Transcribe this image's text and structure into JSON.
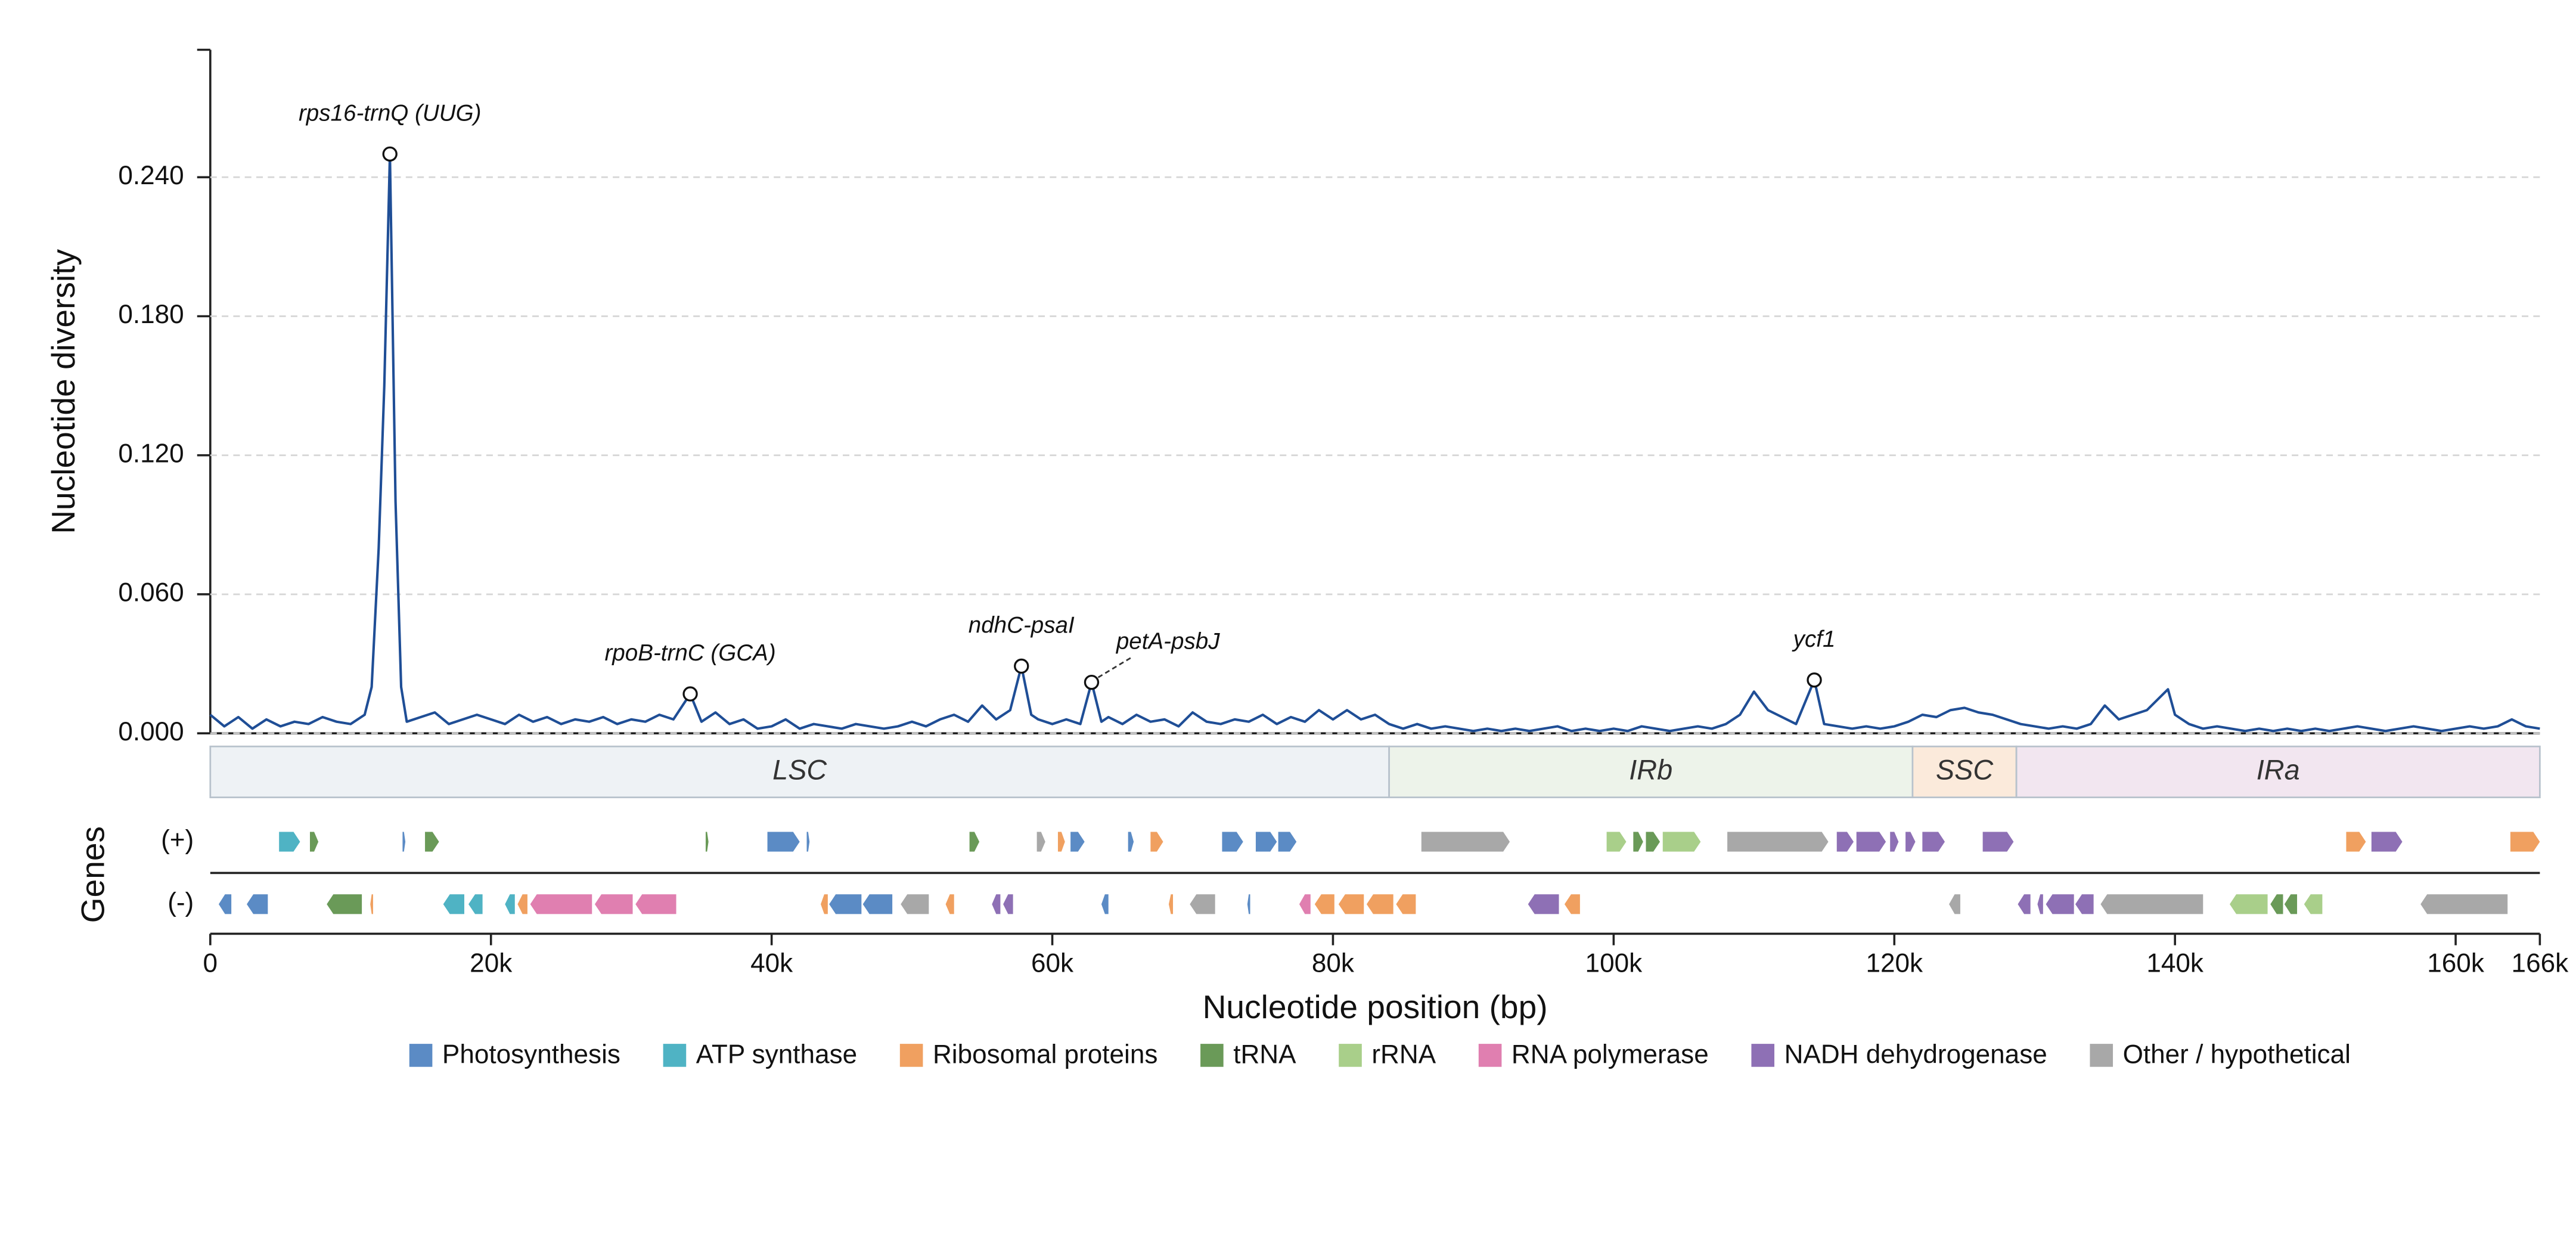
{
  "chart_data": {
    "type": "line",
    "y_label": "Nucleotide diversity",
    "x_label": "Nucleotide position (bp)",
    "gene_label": "Genes",
    "color": "#1f4e96",
    "xlim": [
      0,
      166000
    ],
    "xticks": [
      {
        "value": 0,
        "label": "0"
      },
      {
        "value": 20000,
        "label": "20k"
      },
      {
        "value": 40000,
        "label": "40k"
      },
      {
        "value": 60000,
        "label": "60k"
      },
      {
        "value": 80000,
        "label": "80k"
      },
      {
        "value": 100000,
        "label": "100k"
      },
      {
        "value": 120000,
        "label": "120k"
      },
      {
        "value": 140000,
        "label": "140k"
      },
      {
        "value": 160000,
        "label": "160k"
      },
      {
        "value": 166000,
        "label": "166k"
      }
    ],
    "ylim": [
      0,
      0.295
    ],
    "yticks": [
      {
        "value": 0,
        "label": "0.000"
      },
      {
        "value": 0.06,
        "label": "0.060"
      },
      {
        "value": 0.12,
        "label": "0.120"
      },
      {
        "value": 0.18,
        "label": "0.180"
      },
      {
        "value": 0.24,
        "label": "0.240"
      }
    ],
    "grid": true,
    "x": [
      0,
      1000,
      2000,
      3000,
      4000,
      5000,
      6000,
      7000,
      8000,
      9000,
      10000,
      11000,
      11500,
      12000,
      12400,
      12800,
      13200,
      13600,
      14000,
      15000,
      16000,
      17000,
      18000,
      19000,
      20000,
      21000,
      22000,
      23000,
      24000,
      25000,
      26000,
      27000,
      28000,
      29000,
      30000,
      31000,
      32000,
      33000,
      34200,
      35000,
      36000,
      37000,
      38000,
      39000,
      40000,
      41000,
      42000,
      43000,
      44000,
      45000,
      46000,
      47000,
      48000,
      49000,
      50000,
      51000,
      52000,
      53000,
      54000,
      55000,
      56000,
      57000,
      57800,
      58500,
      59000,
      60000,
      61000,
      62000,
      62800,
      63500,
      64000,
      65000,
      66000,
      67000,
      68000,
      69000,
      70000,
      71000,
      72000,
      73000,
      74000,
      75000,
      76000,
      77000,
      78000,
      79000,
      80000,
      81000,
      82000,
      83000,
      84000,
      85000,
      86000,
      87000,
      88000,
      89000,
      90000,
      91000,
      92000,
      93000,
      94000,
      95000,
      96000,
      97000,
      98000,
      99000,
      100000,
      101000,
      102000,
      103000,
      104000,
      105000,
      106000,
      107000,
      108000,
      109000,
      110000,
      111000,
      112000,
      113000,
      114300,
      115000,
      116000,
      117000,
      118000,
      119000,
      120000,
      121000,
      122000,
      123000,
      124000,
      125000,
      126000,
      127000,
      128000,
      129000,
      130000,
      131000,
      132000,
      133000,
      134000,
      135000,
      136000,
      137000,
      138000,
      139500,
      140000,
      141000,
      142000,
      143000,
      144000,
      145000,
      146000,
      147000,
      148000,
      149000,
      150000,
      151000,
      152000,
      153000,
      154000,
      155000,
      156000,
      157000,
      158000,
      159000,
      160000,
      161000,
      162000,
      163000,
      164000,
      165000,
      166000
    ],
    "values": [
      0.008,
      0.003,
      0.007,
      0.002,
      0.006,
      0.003,
      0.005,
      0.004,
      0.007,
      0.005,
      0.004,
      0.008,
      0.02,
      0.08,
      0.15,
      0.25,
      0.1,
      0.02,
      0.005,
      0.007,
      0.009,
      0.004,
      0.006,
      0.008,
      0.006,
      0.004,
      0.008,
      0.005,
      0.007,
      0.004,
      0.006,
      0.005,
      0.007,
      0.004,
      0.006,
      0.005,
      0.008,
      0.006,
      0.017,
      0.005,
      0.009,
      0.004,
      0.006,
      0.002,
      0.003,
      0.006,
      0.002,
      0.004,
      0.003,
      0.002,
      0.004,
      0.003,
      0.002,
      0.003,
      0.005,
      0.003,
      0.006,
      0.008,
      0.005,
      0.012,
      0.006,
      0.01,
      0.029,
      0.008,
      0.006,
      0.004,
      0.006,
      0.004,
      0.022,
      0.005,
      0.007,
      0.004,
      0.008,
      0.005,
      0.006,
      0.003,
      0.009,
      0.005,
      0.004,
      0.006,
      0.005,
      0.008,
      0.004,
      0.007,
      0.005,
      0.01,
      0.006,
      0.01,
      0.006,
      0.008,
      0.004,
      0.002,
      0.004,
      0.002,
      0.003,
      0.002,
      0.001,
      0.002,
      0.001,
      0.002,
      0.001,
      0.002,
      0.003,
      0.001,
      0.002,
      0.001,
      0.002,
      0.001,
      0.003,
      0.002,
      0.001,
      0.002,
      0.003,
      0.002,
      0.004,
      0.008,
      0.018,
      0.01,
      0.007,
      0.004,
      0.023,
      0.004,
      0.003,
      0.002,
      0.003,
      0.002,
      0.003,
      0.005,
      0.008,
      0.007,
      0.01,
      0.011,
      0.009,
      0.008,
      0.006,
      0.004,
      0.003,
      0.002,
      0.003,
      0.002,
      0.004,
      0.012,
      0.006,
      0.008,
      0.01,
      0.019,
      0.008,
      0.004,
      0.002,
      0.003,
      0.002,
      0.001,
      0.002,
      0.001,
      0.002,
      0.001,
      0.002,
      0.001,
      0.002,
      0.003,
      0.002,
      0.001,
      0.002,
      0.003,
      0.002,
      0.001,
      0.002,
      0.003,
      0.002,
      0.003,
      0.006,
      0.003,
      0.002
    ],
    "annotations": [
      {
        "label": "rps16-trnQ (UUG)",
        "x": 12800,
        "y": 0.25
      },
      {
        "label": "rpoB-trnC (GCA)",
        "x": 34200,
        "y": 0.017
      },
      {
        "label": "ndhC-psaI",
        "x": 57800,
        "y": 0.029
      },
      {
        "label": "petA-psbJ",
        "x": 62800,
        "y": 0.022
      },
      {
        "label": "ycf1",
        "x": 114300,
        "y": 0.023
      }
    ],
    "regions": [
      {
        "label": "LSC",
        "start": 0,
        "end": 84000,
        "color": "#eef2f5"
      },
      {
        "label": "IRb",
        "start": 84000,
        "end": 121300,
        "color": "#edf3ea"
      },
      {
        "label": "SSC",
        "start": 121300,
        "end": 128700,
        "color": "#fbeadb"
      },
      {
        "label": "IRa",
        "start": 128700,
        "end": 166000,
        "color": "#f2e6f0"
      }
    ],
    "strands": [
      "(+)",
      "(-)"
    ],
    "gene_categories": [
      {
        "name": "Photosynthesis",
        "color": "#5b8bc5"
      },
      {
        "name": "ATP synthase",
        "color": "#4fb3c4"
      },
      {
        "name": "Ribosomal proteins",
        "color": "#f0a060"
      },
      {
        "name": "tRNA",
        "color": "#6a9a58"
      },
      {
        "name": "rRNA",
        "color": "#a9cf8a"
      },
      {
        "name": "RNA polymerase",
        "color": "#e07fb0"
      },
      {
        "name": "NADH dehydrogenase",
        "color": "#8e70b5"
      },
      {
        "name": "Other / hypothetical",
        "color": "#a8a8a8"
      }
    ],
    "genes": [
      {
        "start": 4900,
        "end": 6400,
        "strand": 0,
        "category": 1
      },
      {
        "start": 7100,
        "end": 7700,
        "strand": 0,
        "category": 3
      },
      {
        "start": 13700,
        "end": 13900,
        "strand": 0,
        "category": 0
      },
      {
        "start": 15300,
        "end": 16300,
        "strand": 0,
        "category": 3
      },
      {
        "start": 35300,
        "end": 35500,
        "strand": 0,
        "category": 3
      },
      {
        "start": 39700,
        "end": 42000,
        "strand": 0,
        "category": 0
      },
      {
        "start": 42500,
        "end": 42700,
        "strand": 0,
        "category": 0
      },
      {
        "start": 54100,
        "end": 54800,
        "strand": 0,
        "category": 3
      },
      {
        "start": 58900,
        "end": 59500,
        "strand": 0,
        "category": 7
      },
      {
        "start": 60400,
        "end": 60900,
        "strand": 0,
        "category": 2
      },
      {
        "start": 61300,
        "end": 62300,
        "strand": 0,
        "category": 0
      },
      {
        "start": 65400,
        "end": 65800,
        "strand": 0,
        "category": 0
      },
      {
        "start": 67000,
        "end": 67900,
        "strand": 0,
        "category": 2
      },
      {
        "start": 72100,
        "end": 73600,
        "strand": 0,
        "category": 0
      },
      {
        "start": 74500,
        "end": 76000,
        "strand": 0,
        "category": 0
      },
      {
        "start": 76100,
        "end": 77400,
        "strand": 0,
        "category": 0
      },
      {
        "start": 86300,
        "end": 92600,
        "strand": 0,
        "category": 7
      },
      {
        "start": 99500,
        "end": 100900,
        "strand": 0,
        "category": 4
      },
      {
        "start": 101400,
        "end": 102100,
        "strand": 0,
        "category": 3
      },
      {
        "start": 102300,
        "end": 103300,
        "strand": 0,
        "category": 3
      },
      {
        "start": 103500,
        "end": 106200,
        "strand": 0,
        "category": 4
      },
      {
        "start": 108100,
        "end": 115300,
        "strand": 0,
        "category": 7
      },
      {
        "start": 115900,
        "end": 117100,
        "strand": 0,
        "category": 6
      },
      {
        "start": 117300,
        "end": 119400,
        "strand": 0,
        "category": 6
      },
      {
        "start": 119700,
        "end": 120300,
        "strand": 0,
        "category": 6
      },
      {
        "start": 120800,
        "end": 121500,
        "strand": 0,
        "category": 6
      },
      {
        "start": 122000,
        "end": 123600,
        "strand": 0,
        "category": 6
      },
      {
        "start": 126300,
        "end": 128500,
        "strand": 0,
        "category": 6
      },
      {
        "start": 152200,
        "end": 153600,
        "strand": 0,
        "category": 2
      },
      {
        "start": 154000,
        "end": 156200,
        "strand": 0,
        "category": 6
      },
      {
        "start": 163900,
        "end": 166000,
        "strand": 0,
        "category": 2
      },
      {
        "start": 600,
        "end": 1500,
        "strand": 1,
        "category": 0
      },
      {
        "start": 2600,
        "end": 4100,
        "strand": 1,
        "category": 0
      },
      {
        "start": 8300,
        "end": 10800,
        "strand": 1,
        "category": 3
      },
      {
        "start": 11400,
        "end": 11600,
        "strand": 1,
        "category": 2
      },
      {
        "start": 16600,
        "end": 18100,
        "strand": 1,
        "category": 1
      },
      {
        "start": 18400,
        "end": 19400,
        "strand": 1,
        "category": 1
      },
      {
        "start": 21000,
        "end": 21700,
        "strand": 1,
        "category": 1
      },
      {
        "start": 21900,
        "end": 22600,
        "strand": 1,
        "category": 2
      },
      {
        "start": 22800,
        "end": 27200,
        "strand": 1,
        "category": 5
      },
      {
        "start": 27400,
        "end": 30100,
        "strand": 1,
        "category": 5
      },
      {
        "start": 30300,
        "end": 33200,
        "strand": 1,
        "category": 5
      },
      {
        "start": 43500,
        "end": 44000,
        "strand": 1,
        "category": 2
      },
      {
        "start": 44100,
        "end": 46400,
        "strand": 1,
        "category": 0
      },
      {
        "start": 46500,
        "end": 48600,
        "strand": 1,
        "category": 0
      },
      {
        "start": 49200,
        "end": 51200,
        "strand": 1,
        "category": 7
      },
      {
        "start": 52400,
        "end": 53000,
        "strand": 1,
        "category": 2
      },
      {
        "start": 55700,
        "end": 56300,
        "strand": 1,
        "category": 6
      },
      {
        "start": 56500,
        "end": 57200,
        "strand": 1,
        "category": 6
      },
      {
        "start": 63500,
        "end": 64000,
        "strand": 1,
        "category": 0
      },
      {
        "start": 68300,
        "end": 68600,
        "strand": 1,
        "category": 2
      },
      {
        "start": 69800,
        "end": 71600,
        "strand": 1,
        "category": 7
      },
      {
        "start": 73900,
        "end": 74100,
        "strand": 1,
        "category": 0
      },
      {
        "start": 77600,
        "end": 78400,
        "strand": 1,
        "category": 5
      },
      {
        "start": 78700,
        "end": 80100,
        "strand": 1,
        "category": 2
      },
      {
        "start": 80400,
        "end": 82200,
        "strand": 1,
        "category": 2
      },
      {
        "start": 82400,
        "end": 84300,
        "strand": 1,
        "category": 2
      },
      {
        "start": 84500,
        "end": 85900,
        "strand": 1,
        "category": 2
      },
      {
        "start": 93900,
        "end": 96100,
        "strand": 1,
        "category": 6
      },
      {
        "start": 96500,
        "end": 97600,
        "strand": 1,
        "category": 2
      },
      {
        "start": 123900,
        "end": 124700,
        "strand": 1,
        "category": 7
      },
      {
        "start": 128800,
        "end": 129700,
        "strand": 1,
        "category": 6
      },
      {
        "start": 130200,
        "end": 130600,
        "strand": 1,
        "category": 6
      },
      {
        "start": 130800,
        "end": 132800,
        "strand": 1,
        "category": 6
      },
      {
        "start": 132900,
        "end": 134200,
        "strand": 1,
        "category": 6
      },
      {
        "start": 134700,
        "end": 142000,
        "strand": 1,
        "category": 7
      },
      {
        "start": 143900,
        "end": 146600,
        "strand": 1,
        "category": 4
      },
      {
        "start": 146800,
        "end": 147700,
        "strand": 1,
        "category": 3
      },
      {
        "start": 147800,
        "end": 148700,
        "strand": 1,
        "category": 3
      },
      {
        "start": 149200,
        "end": 150500,
        "strand": 1,
        "category": 4
      },
      {
        "start": 157500,
        "end": 163700,
        "strand": 1,
        "category": 7
      }
    ]
  }
}
